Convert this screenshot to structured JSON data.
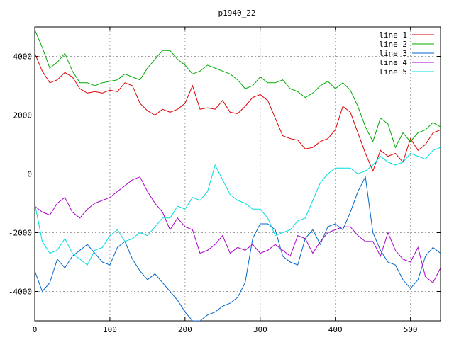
{
  "chart_data": {
    "type": "line",
    "title": "p1940_22",
    "xlabel": "",
    "ylabel": "",
    "xlim": [
      0,
      540
    ],
    "ylim": [
      -5000,
      5000
    ],
    "xticks": [
      0,
      100,
      200,
      300,
      400,
      500
    ],
    "yticks": [
      -4000,
      -2000,
      0,
      2000,
      4000
    ],
    "grid": true,
    "legend_position": "top-right",
    "series": [
      {
        "name": "line 1",
        "color": "#dd0000",
        "x": [
          0,
          10,
          20,
          30,
          40,
          50,
          60,
          70,
          80,
          90,
          100,
          110,
          120,
          130,
          140,
          150,
          160,
          170,
          180,
          190,
          200,
          210,
          220,
          230,
          240,
          250,
          260,
          270,
          280,
          290,
          300,
          310,
          320,
          330,
          340,
          350,
          360,
          370,
          380,
          390,
          400,
          410,
          420,
          430,
          440,
          450,
          460,
          470,
          480,
          490,
          500,
          510,
          520,
          530,
          540
        ],
        "y": [
          4100,
          3500,
          3100,
          3200,
          3450,
          3300,
          2900,
          2750,
          2800,
          2750,
          2850,
          2800,
          3100,
          3000,
          2400,
          2150,
          2000,
          2200,
          2100,
          2200,
          2400,
          3000,
          2200,
          2250,
          2200,
          2500,
          2100,
          2050,
          2300,
          2600,
          2700,
          2500,
          1900,
          1300,
          1200,
          1150,
          850,
          900,
          1100,
          1200,
          1500,
          2300,
          2100,
          1400,
          700,
          100,
          800,
          600,
          700,
          400,
          1200,
          800,
          1000,
          1400,
          1500
        ]
      },
      {
        "name": "line 2",
        "color": "#00aa00",
        "x": [
          0,
          10,
          20,
          30,
          40,
          50,
          60,
          70,
          80,
          90,
          100,
          110,
          120,
          130,
          140,
          150,
          160,
          170,
          180,
          190,
          200,
          210,
          220,
          230,
          240,
          250,
          260,
          270,
          280,
          290,
          300,
          310,
          320,
          330,
          340,
          350,
          360,
          370,
          380,
          390,
          400,
          410,
          420,
          430,
          440,
          450,
          460,
          470,
          480,
          490,
          500,
          510,
          520,
          530,
          540
        ],
        "y": [
          4900,
          4300,
          3600,
          3800,
          4100,
          3500,
          3100,
          3100,
          3000,
          3100,
          3150,
          3200,
          3400,
          3300,
          3200,
          3600,
          3900,
          4200,
          4200,
          3900,
          3700,
          3400,
          3500,
          3700,
          3600,
          3500,
          3400,
          3200,
          2900,
          3000,
          3300,
          3100,
          3100,
          3200,
          2900,
          2800,
          2600,
          2750,
          3000,
          3150,
          2900,
          3100,
          2850,
          2300,
          1600,
          1100,
          1900,
          1700,
          900,
          1400,
          1100,
          1400,
          1500,
          1750,
          1600
        ]
      },
      {
        "name": "line 3",
        "color": "#0066cc",
        "x": [
          0,
          10,
          20,
          30,
          40,
          50,
          60,
          70,
          80,
          90,
          100,
          110,
          120,
          130,
          140,
          150,
          160,
          170,
          180,
          190,
          200,
          210,
          220,
          230,
          240,
          250,
          260,
          270,
          280,
          290,
          300,
          310,
          320,
          330,
          340,
          350,
          360,
          370,
          380,
          390,
          400,
          410,
          420,
          430,
          440,
          450,
          460,
          470,
          480,
          490,
          500,
          510,
          520,
          530,
          540
        ],
        "y": [
          -3300,
          -4000,
          -3700,
          -2900,
          -3200,
          -2800,
          -2600,
          -2400,
          -2700,
          -3000,
          -3100,
          -2500,
          -2300,
          -2900,
          -3300,
          -3600,
          -3400,
          -3700,
          -4000,
          -4300,
          -4700,
          -5000,
          -5000,
          -4800,
          -4700,
          -4500,
          -4400,
          -4200,
          -3700,
          -2200,
          -1700,
          -1700,
          -1900,
          -2800,
          -3000,
          -3100,
          -2200,
          -1900,
          -2400,
          -1800,
          -1700,
          -1900,
          -1300,
          -600,
          -100,
          -2000,
          -2600,
          -3000,
          -3100,
          -3600,
          -3900,
          -3600,
          -2800,
          -2500,
          -2700
        ]
      },
      {
        "name": "line 4",
        "color": "#aa00cc",
        "x": [
          0,
          10,
          20,
          30,
          40,
          50,
          60,
          70,
          80,
          90,
          100,
          110,
          120,
          130,
          140,
          150,
          160,
          170,
          180,
          190,
          200,
          210,
          220,
          230,
          240,
          250,
          260,
          270,
          280,
          290,
          300,
          310,
          320,
          330,
          340,
          350,
          360,
          370,
          380,
          390,
          400,
          410,
          420,
          430,
          440,
          450,
          460,
          470,
          480,
          490,
          500,
          510,
          520,
          530,
          540
        ],
        "y": [
          -1100,
          -1300,
          -1400,
          -1000,
          -800,
          -1300,
          -1500,
          -1200,
          -1000,
          -900,
          -800,
          -600,
          -400,
          -200,
          -100,
          -600,
          -1000,
          -1300,
          -1900,
          -1500,
          -1800,
          -1900,
          -2700,
          -2600,
          -2400,
          -2100,
          -2700,
          -2500,
          -2600,
          -2400,
          -2700,
          -2600,
          -2400,
          -2600,
          -2800,
          -2100,
          -2200,
          -2700,
          -2300,
          -2000,
          -1900,
          -1800,
          -1800,
          -2100,
          -2300,
          -2300,
          -2800,
          -2000,
          -2600,
          -2900,
          -3000,
          -2500,
          -3500,
          -3700,
          -3200
        ]
      },
      {
        "name": "line 5",
        "color": "#00dddd",
        "x": [
          0,
          10,
          20,
          30,
          40,
          50,
          60,
          70,
          80,
          90,
          100,
          110,
          120,
          130,
          140,
          150,
          160,
          170,
          180,
          190,
          200,
          210,
          220,
          230,
          240,
          250,
          260,
          270,
          280,
          290,
          300,
          310,
          320,
          330,
          340,
          350,
          360,
          370,
          380,
          390,
          400,
          410,
          420,
          430,
          440,
          450,
          460,
          470,
          480,
          490,
          500,
          510,
          520,
          530,
          540
        ],
        "y": [
          -1000,
          -2300,
          -2700,
          -2600,
          -2200,
          -2700,
          -2900,
          -3100,
          -2600,
          -2500,
          -2100,
          -1900,
          -2300,
          -2200,
          -2000,
          -2100,
          -1800,
          -1500,
          -1500,
          -1100,
          -1200,
          -800,
          -900,
          -600,
          300,
          -200,
          -700,
          -900,
          -1000,
          -1200,
          -1200,
          -1500,
          -2100,
          -2000,
          -1900,
          -1600,
          -1500,
          -900,
          -300,
          0,
          200,
          200,
          200,
          0,
          100,
          300,
          600,
          400,
          300,
          400,
          700,
          600,
          500,
          800,
          900
        ]
      }
    ]
  }
}
